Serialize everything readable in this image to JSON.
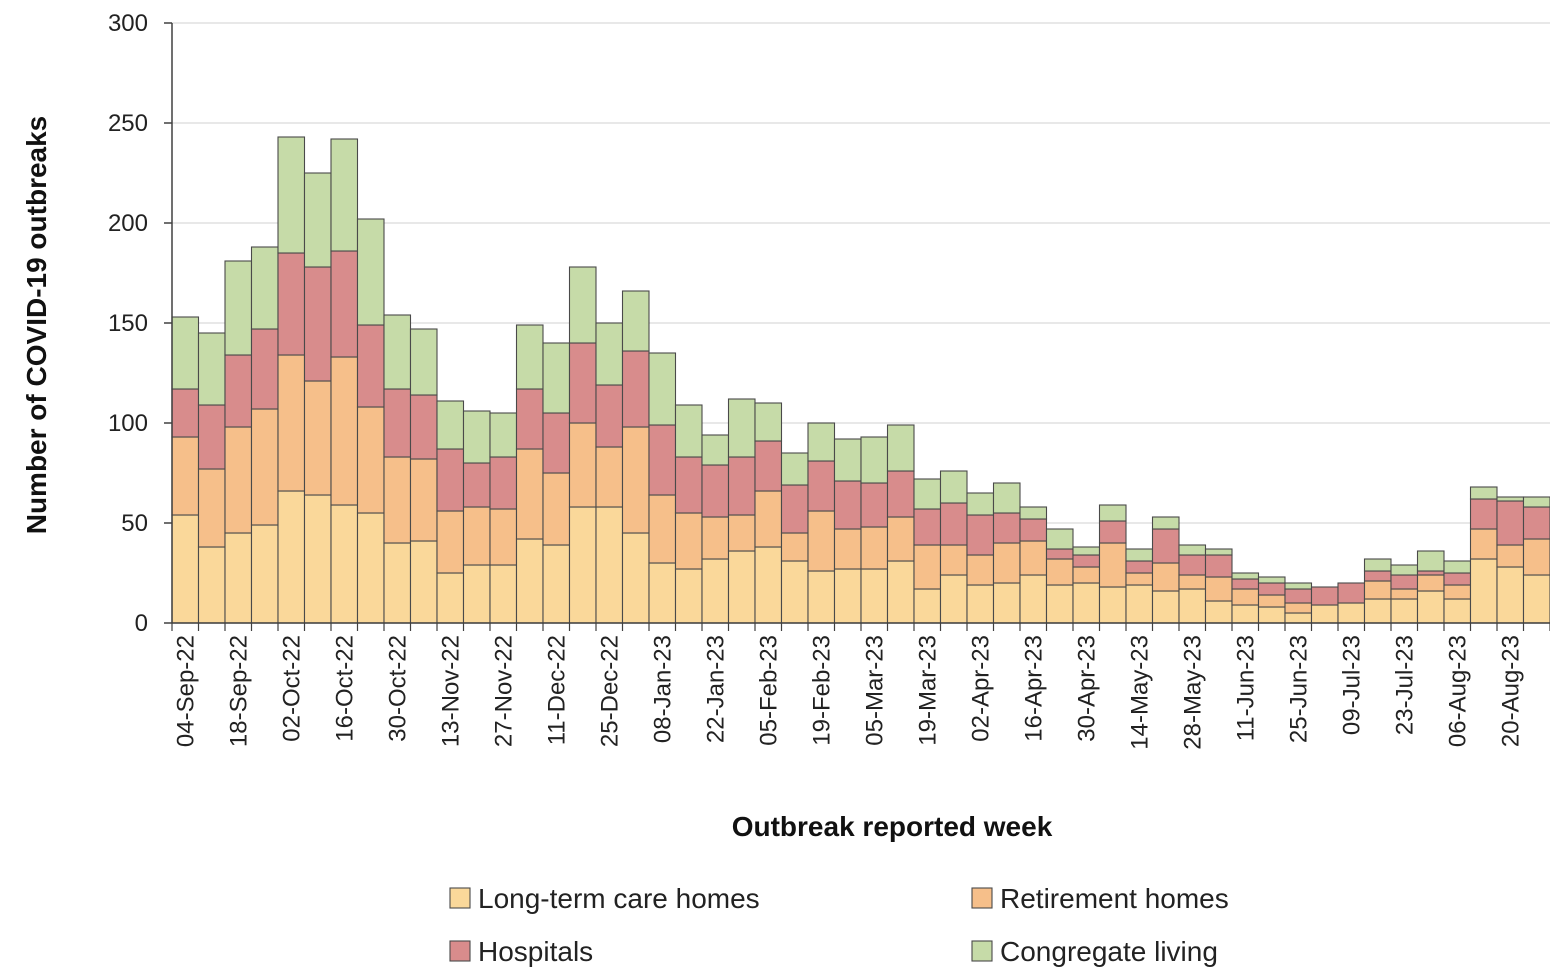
{
  "chart_data": {
    "type": "bar",
    "stacked": true,
    "xlabel": "Outbreak reported week",
    "ylabel": "Number of COVID-19 outbreaks",
    "ylim": [
      0,
      300
    ],
    "yticks": [
      0,
      50,
      100,
      150,
      200,
      250,
      300
    ],
    "grid": "horizontal",
    "legend_position": "bottom",
    "tick_labels": [
      "04-Sep-22",
      "18-Sep-22",
      "02-Oct-22",
      "16-Oct-22",
      "30-Oct-22",
      "13-Nov-22",
      "27-Nov-22",
      "11-Dec-22",
      "25-Dec-22",
      "08-Jan-23",
      "22-Jan-23",
      "05-Feb-23",
      "19-Feb-23",
      "05-Mar-23",
      "19-Mar-23",
      "02-Apr-23",
      "16-Apr-23",
      "30-Apr-23",
      "14-May-23",
      "28-May-23",
      "11-Jun-23",
      "25-Jun-23",
      "09-Jul-23",
      "23-Jul-23",
      "06-Aug-23",
      "20-Aug-23"
    ],
    "tick_every": 2,
    "series": [
      {
        "name": "Long-term care homes",
        "color": "#fad89a",
        "values": [
          54,
          38,
          45,
          49,
          66,
          64,
          59,
          55,
          40,
          41,
          25,
          29,
          29,
          42,
          39,
          58,
          58,
          45,
          30,
          27,
          32,
          36,
          38,
          31,
          26,
          27,
          27,
          31,
          17,
          24,
          19,
          20,
          24,
          19,
          20,
          18,
          19,
          16,
          17,
          11,
          9,
          8,
          5,
          9,
          10,
          12,
          12,
          16,
          12,
          32,
          28,
          24
        ]
      },
      {
        "name": "Retirement homes",
        "color": "#f6bf8a",
        "values": [
          39,
          39,
          53,
          58,
          68,
          57,
          74,
          53,
          43,
          41,
          31,
          29,
          28,
          45,
          36,
          42,
          30,
          53,
          34,
          28,
          21,
          18,
          28,
          14,
          30,
          20,
          21,
          22,
          22,
          15,
          15,
          20,
          17,
          13,
          8,
          22,
          6,
          14,
          7,
          12,
          8,
          6,
          5,
          0,
          0,
          9,
          5,
          8,
          7,
          15,
          11,
          18
        ]
      },
      {
        "name": "Hospitals",
        "color": "#d88c8c",
        "values": [
          24,
          32,
          36,
          40,
          51,
          57,
          53,
          41,
          34,
          32,
          31,
          22,
          26,
          30,
          30,
          40,
          31,
          38,
          35,
          28,
          26,
          29,
          25,
          24,
          25,
          24,
          22,
          23,
          18,
          21,
          20,
          15,
          11,
          5,
          6,
          11,
          6,
          17,
          10,
          11,
          5,
          6,
          7,
          9,
          10,
          5,
          7,
          2,
          6,
          15,
          22,
          16
        ]
      },
      {
        "name": "Congregate living",
        "color": "#c6dba8",
        "values": [
          36,
          36,
          47,
          41,
          58,
          47,
          56,
          53,
          37,
          33,
          24,
          26,
          22,
          32,
          35,
          38,
          31,
          30,
          36,
          26,
          15,
          29,
          19,
          16,
          19,
          21,
          23,
          23,
          15,
          16,
          11,
          15,
          6,
          10,
          4,
          8,
          6,
          6,
          5,
          3,
          3,
          3,
          3,
          0,
          0,
          6,
          5,
          10,
          6,
          6,
          2,
          5
        ]
      }
    ]
  }
}
